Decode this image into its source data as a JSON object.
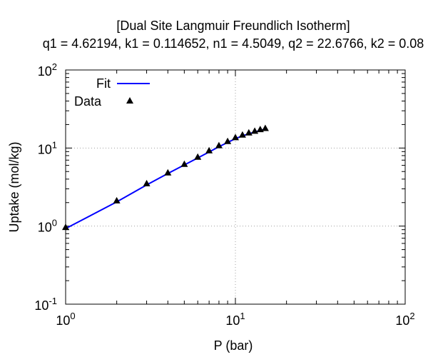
{
  "chart_data": {
    "type": "line",
    "title": "[Dual Site Langmuir Freundlich Isotherm]",
    "subtitle": "q1 = 4.62194, k1 = 0.114652, n1 = 4.5049, q2 = 22.6766, k2 = 0.08",
    "xlabel": "P (bar)",
    "ylabel": "Uptake (mol/kg)",
    "xscale": "log",
    "yscale": "log",
    "xlim": [
      1,
      100
    ],
    "ylim": [
      0.1,
      100
    ],
    "grid": true,
    "legend_position": "top-left",
    "x_ticks": [
      {
        "value": 1,
        "base": "10",
        "exp": "0"
      },
      {
        "value": 10,
        "base": "10",
        "exp": "1"
      },
      {
        "value": 100,
        "base": "10",
        "exp": "2"
      }
    ],
    "y_ticks": [
      {
        "value": 0.1,
        "base": "10",
        "exp": "-1"
      },
      {
        "value": 1,
        "base": "10",
        "exp": "0"
      },
      {
        "value": 10,
        "base": "10",
        "exp": "1"
      },
      {
        "value": 100,
        "base": "10",
        "exp": "2"
      }
    ],
    "series": [
      {
        "name": "Fit",
        "kind": "line",
        "color": "#0000ff",
        "x": [
          1.0,
          2.0,
          3.0,
          4.0,
          5.0,
          6.0,
          7.0,
          8.0,
          9.0,
          10.0,
          11.0,
          12.0,
          13.0,
          14.0,
          15.0
        ],
        "y": [
          0.93,
          2.04,
          3.37,
          4.72,
          6.08,
          7.47,
          8.9,
          10.4,
          11.8,
          13.2,
          14.3,
          15.2,
          16.0,
          16.8,
          17.5
        ]
      },
      {
        "name": "Data",
        "kind": "markers",
        "marker": "triangle",
        "color": "#000000",
        "x": [
          1.0,
          2.0,
          3.0,
          4.0,
          5.0,
          6.0,
          7.0,
          8.0,
          9.0,
          10.0,
          11.0,
          12.0,
          13.0,
          14.0,
          15.0
        ],
        "y": [
          0.95,
          2.08,
          3.45,
          4.75,
          6.1,
          7.55,
          9.1,
          10.6,
          12.0,
          13.4,
          14.5,
          15.4,
          16.2,
          17.0,
          17.6
        ]
      }
    ]
  }
}
